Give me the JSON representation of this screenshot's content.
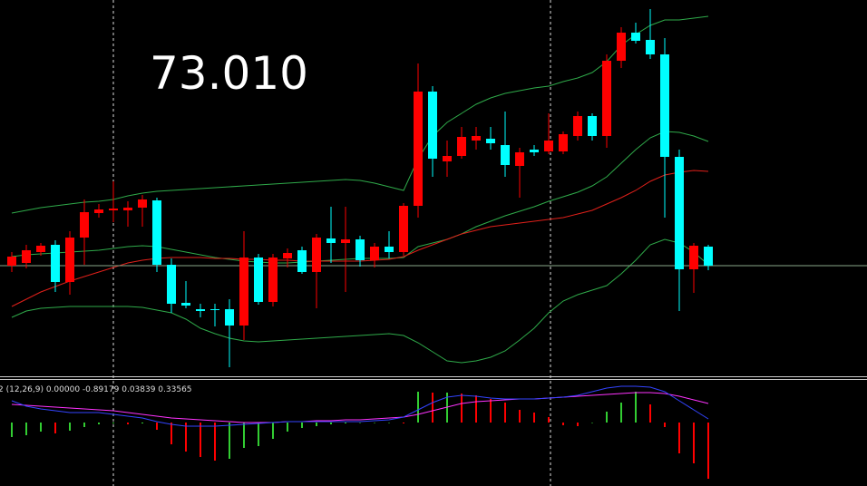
{
  "chart_data": [
    {
      "type": "candlestick",
      "title": "73.010",
      "ylim": [
        0,
        415
      ],
      "bull_color": "#ff0000",
      "bear_color": "#00ffff",
      "open": [
        122,
        125,
        137,
        145,
        104,
        153,
        180,
        183,
        183,
        186,
        194,
        123,
        81,
        74,
        74,
        74,
        56,
        131,
        82,
        130,
        139,
        115,
        152,
        147,
        151,
        128,
        143,
        137,
        188,
        314,
        237,
        243,
        260,
        262,
        255,
        232,
        250,
        248,
        248,
        265,
        287,
        265,
        348,
        379,
        371,
        355,
        242,
        118,
        143
      ],
      "high": [
        137,
        145,
        147,
        150,
        160,
        195,
        190,
        215,
        193,
        200,
        197,
        130,
        105,
        80,
        80,
        85,
        160,
        135,
        135,
        141,
        143,
        157,
        187,
        187,
        155,
        147,
        160,
        191,
        345,
        320,
        260,
        275,
        275,
        275,
        292,
        252,
        255,
        290,
        270,
        292,
        290,
        355,
        385,
        390,
        405,
        373,
        250,
        147,
        145
      ],
      "low": [
        115,
        119,
        133,
        93,
        90,
        123,
        175,
        170,
        165,
        165,
        115,
        70,
        75,
        65,
        55,
        10,
        40,
        79,
        77,
        120,
        113,
        75,
        125,
        93,
        121,
        120,
        130,
        133,
        175,
        220,
        220,
        240,
        250,
        250,
        220,
        197,
        243,
        245,
        245,
        260,
        260,
        252,
        340,
        367,
        350,
        175,
        72,
        92,
        117
      ],
      "close": [
        132,
        139,
        144,
        104,
        153,
        181,
        184,
        185,
        186,
        195,
        123,
        80,
        78,
        72,
        73,
        56,
        131,
        82,
        131,
        136,
        115,
        153,
        147,
        151,
        128,
        143,
        137,
        188,
        314,
        240,
        243,
        264,
        265,
        257,
        233,
        247,
        247,
        260,
        267,
        287,
        265,
        348,
        379,
        370,
        355,
        242,
        118,
        144,
        122
      ],
      "price_line": 122,
      "series": [
        {
          "name": "upper",
          "color": "#2faa4a",
          "values": [
            180,
            183,
            186,
            188,
            190,
            192,
            193,
            195,
            199,
            202,
            204,
            205,
            206,
            207,
            208,
            209,
            210,
            211,
            212,
            213,
            214,
            215,
            216,
            217,
            216,
            213,
            209,
            205,
            240,
            265,
            280,
            290,
            300,
            307,
            312,
            315,
            318,
            320,
            325,
            329,
            335,
            347,
            365,
            377,
            387,
            393,
            393,
            395,
            397
          ]
        },
        {
          "name": "middle",
          "color": "#2faa4a",
          "values": [
            132,
            134,
            135,
            136,
            137,
            138,
            139,
            141,
            143,
            144,
            143,
            140,
            137,
            134,
            131,
            129,
            127,
            126,
            125,
            125,
            126,
            127,
            128,
            129,
            130,
            130,
            130,
            131,
            143,
            147,
            151,
            157,
            165,
            171,
            177,
            182,
            187,
            193,
            198,
            203,
            210,
            220,
            235,
            250,
            263,
            270,
            269,
            265,
            259
          ]
        },
        {
          "name": "lower",
          "color": "#2faa4a",
          "values": [
            65,
            72,
            75,
            76,
            77,
            77,
            77,
            77,
            77,
            76,
            73,
            70,
            63,
            53,
            47,
            42,
            39,
            38,
            39,
            40,
            41,
            42,
            43,
            44,
            45,
            46,
            47,
            45,
            37,
            27,
            17,
            15,
            17,
            21,
            28,
            40,
            53,
            70,
            83,
            90,
            95,
            100,
            113,
            128,
            145,
            151,
            147,
            137,
            123
          ]
        },
        {
          "name": "ma",
          "color": "#e0201a",
          "values": [
            77,
            85,
            93,
            99,
            105,
            110,
            115,
            120,
            125,
            128,
            130,
            131,
            131,
            131,
            130,
            130,
            129,
            129,
            128,
            128,
            127,
            127,
            127,
            127,
            127,
            128,
            129,
            132,
            139,
            145,
            151,
            157,
            161,
            165,
            167,
            169,
            171,
            173,
            175,
            179,
            183,
            190,
            197,
            205,
            215,
            222,
            225,
            227,
            226
          ]
        }
      ]
    },
    {
      "type": "macd",
      "title": "2 (12,26,9) 0.00000 -0.89179 0.03839 0.33565",
      "ylim": [
        -70,
        46
      ],
      "up_color": "#32cd32",
      "down_color": "#ff0000",
      "values": [
        -16,
        -14,
        -10,
        -12,
        -9,
        -5,
        -2,
        -1,
        -2,
        -1,
        -8,
        -24,
        -32,
        -38,
        -42,
        -40,
        -28,
        -26,
        -18,
        -10,
        -6,
        -4,
        -2,
        -1,
        0,
        0,
        0,
        -1,
        34,
        33,
        33,
        32,
        30,
        26,
        22,
        14,
        11,
        6,
        -3,
        -4,
        0,
        12,
        22,
        34,
        20,
        -5,
        -34,
        -45,
        -62
      ],
      "series": [
        {
          "name": "signal",
          "color": "#ff33ff",
          "values": [
            20,
            19,
            18,
            17,
            16,
            15,
            14,
            13,
            11,
            9,
            7,
            5,
            4,
            3,
            2,
            1,
            0,
            0,
            0,
            1,
            1,
            2,
            2,
            3,
            3,
            4,
            5,
            6,
            9,
            13,
            17,
            21,
            23,
            24,
            25,
            26,
            26,
            27,
            28,
            29,
            30,
            31,
            32,
            33,
            33,
            32,
            29,
            25,
            21
          ]
        },
        {
          "name": "macd",
          "color": "#3344ff",
          "values": [
            24,
            18,
            15,
            13,
            11,
            11,
            11,
            9,
            7,
            5,
            1,
            -2,
            -4,
            -4,
            -4,
            -3,
            -2,
            -1,
            0,
            1,
            1,
            1,
            1,
            1,
            1,
            2,
            3,
            6,
            14,
            22,
            28,
            30,
            29,
            27,
            26,
            26,
            26,
            27,
            28,
            30,
            34,
            38,
            40,
            40,
            39,
            34,
            24,
            14,
            4
          ]
        }
      ]
    }
  ]
}
